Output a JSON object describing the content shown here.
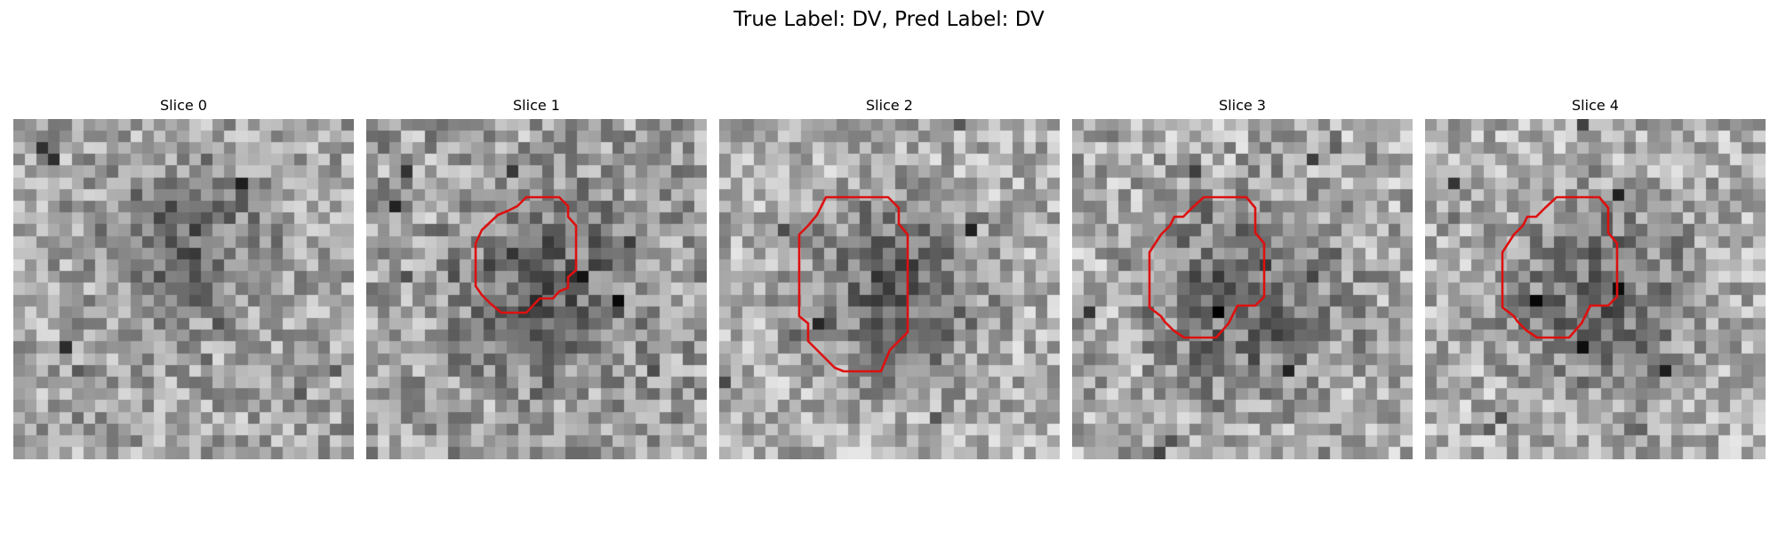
{
  "figure": {
    "title": "True Label: DV, Pred Label: DV"
  },
  "slices": [
    {
      "label": "Slice 0",
      "has_mask": false
    },
    {
      "label": "Slice 1",
      "has_mask": true
    },
    {
      "label": "Slice 2",
      "has_mask": true
    },
    {
      "label": "Slice 3",
      "has_mask": true
    },
    {
      "label": "Slice 4",
      "has_mask": true
    }
  ],
  "colors": {
    "mask_outline": "#dd1010",
    "colormap": "gray"
  }
}
